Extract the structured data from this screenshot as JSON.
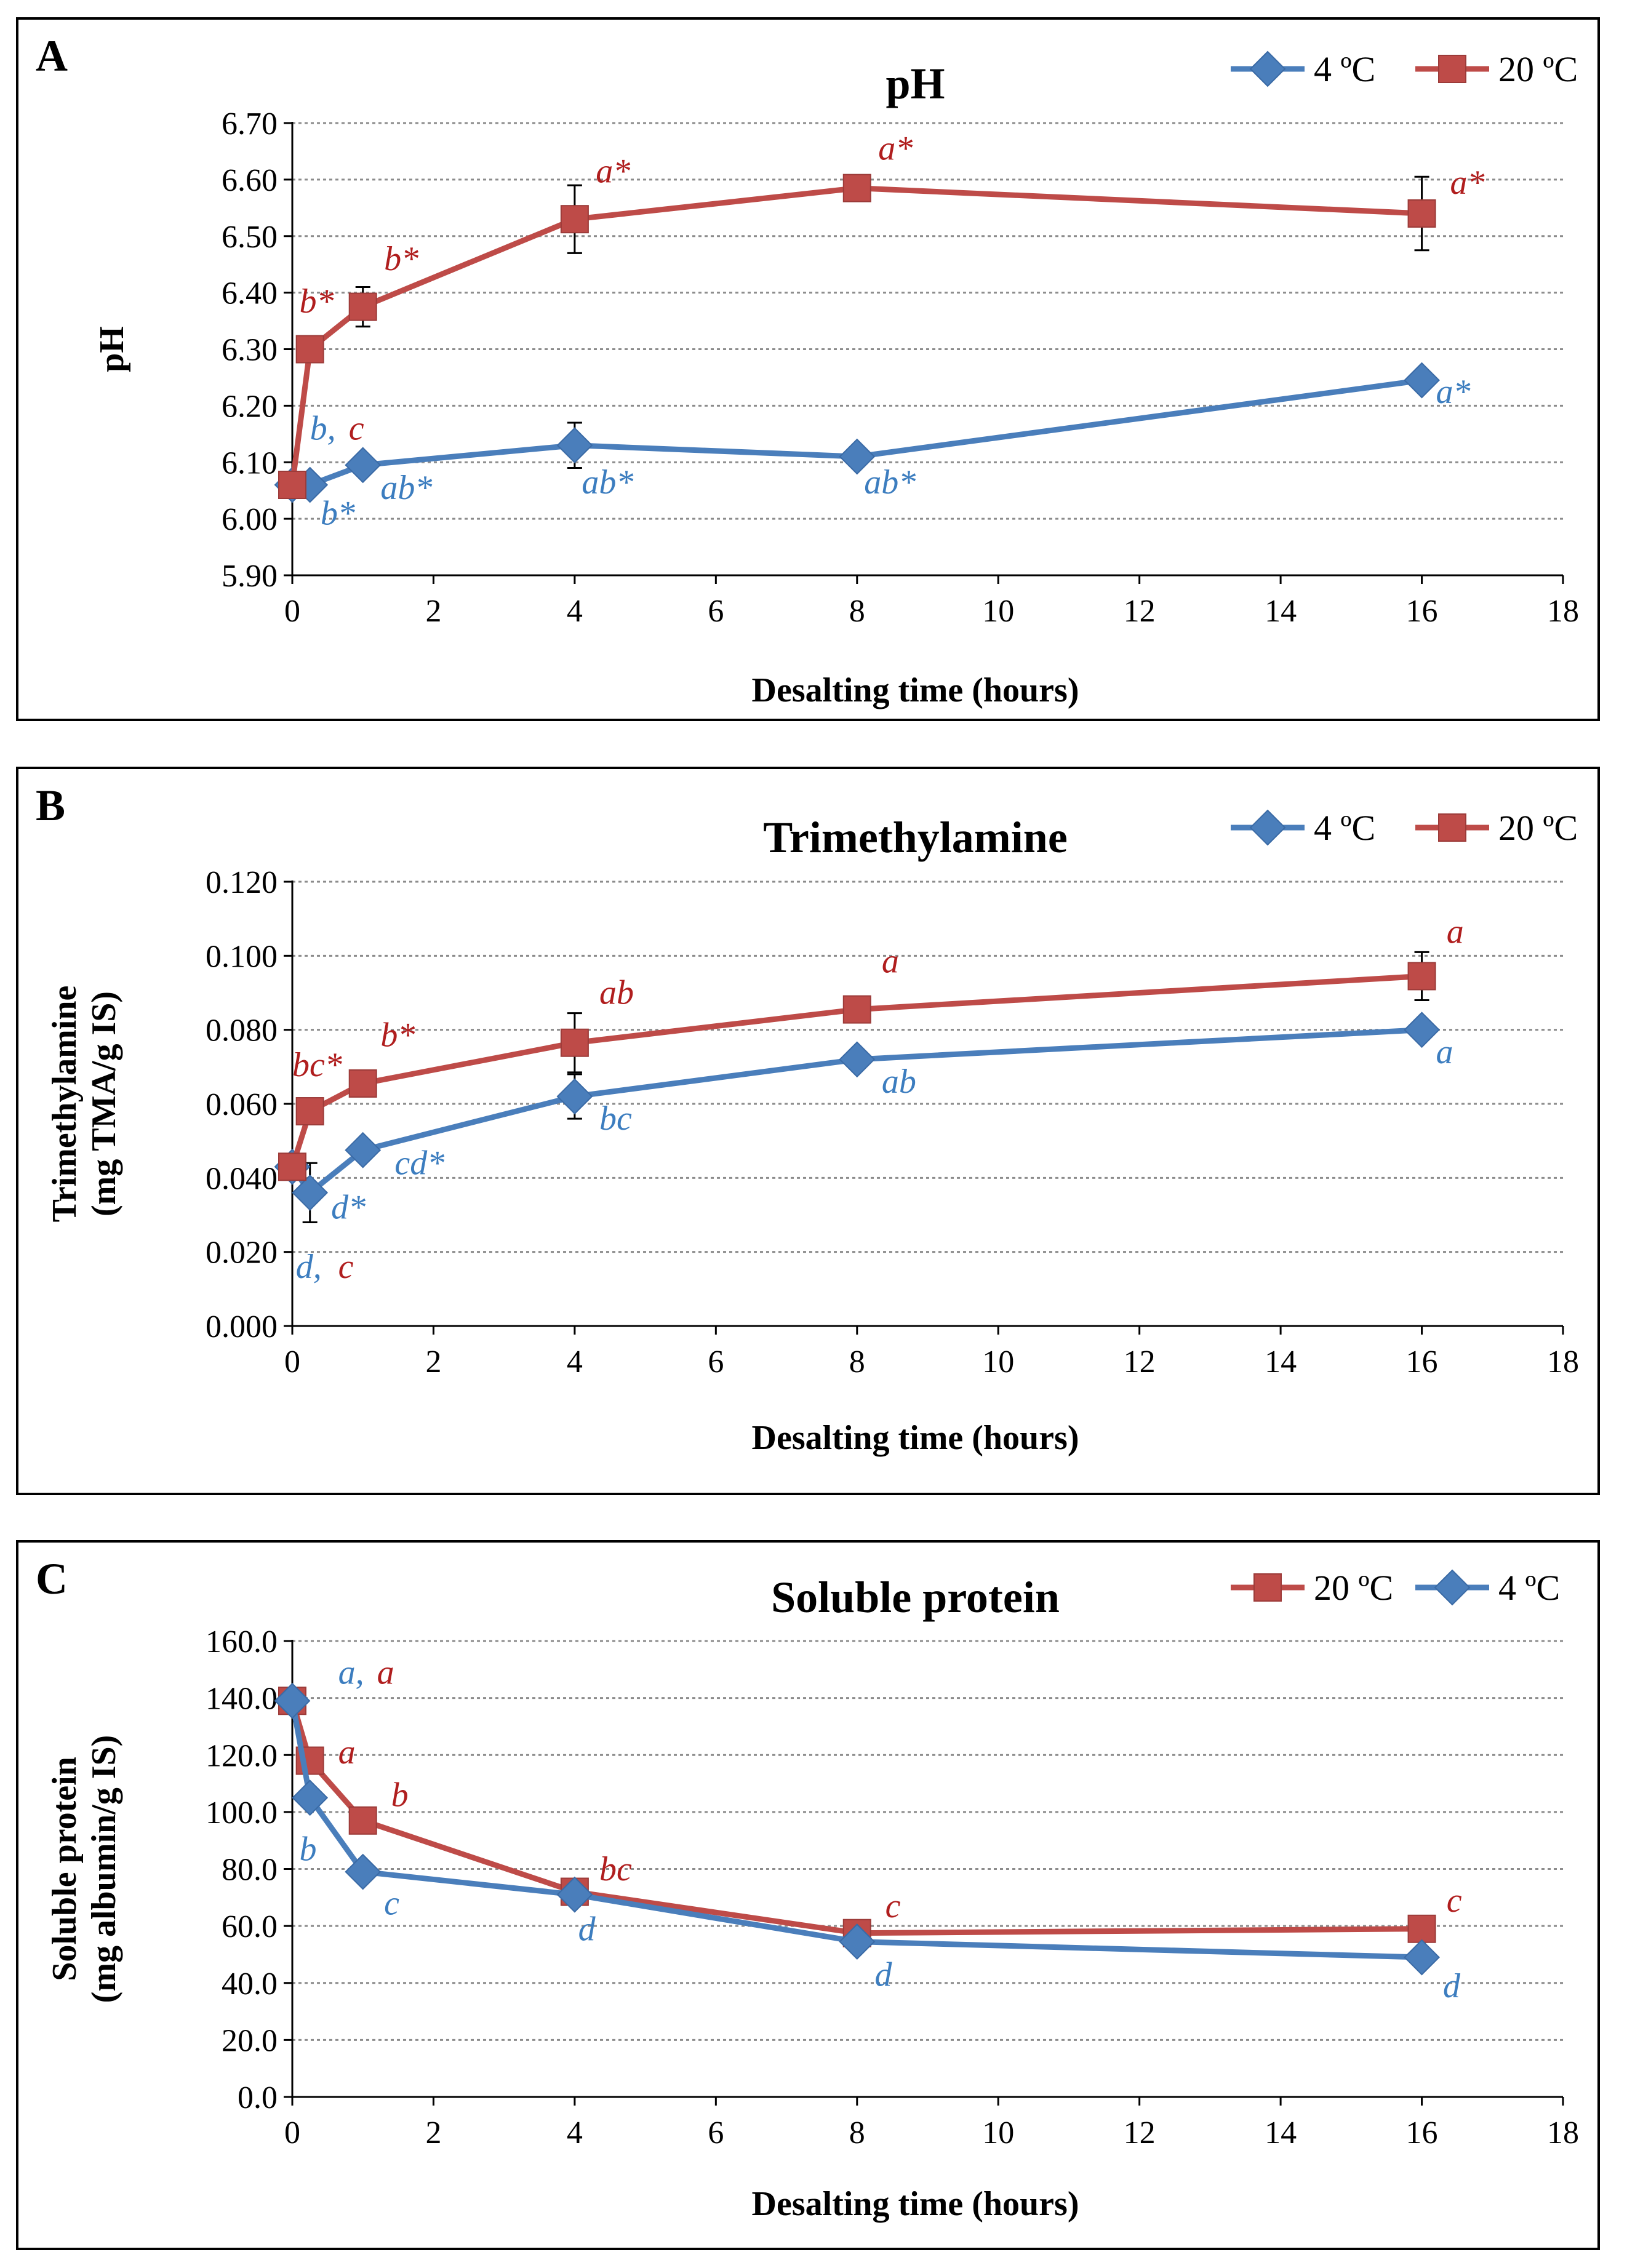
{
  "colors": {
    "blue": "#4a7ebb",
    "red": "#be4b48",
    "blue_text": "#3c7dbf",
    "red_text": "#b01e1e"
  },
  "chart_data": [
    {
      "panel": "A",
      "type": "line",
      "title": "pH",
      "xlabel": "Desalting time (hours)",
      "ylabel": [
        "pH"
      ],
      "xlim": [
        0,
        18
      ],
      "ylim": [
        5.9,
        6.7
      ],
      "xticks": [
        "0",
        "2",
        "4",
        "6",
        "8",
        "10",
        "12",
        "14",
        "16",
        "18"
      ],
      "yticks": [
        "5.90",
        "6.00",
        "6.10",
        "6.20",
        "6.30",
        "6.40",
        "6.50",
        "6.60",
        "6.70"
      ],
      "legend_position": "top-right",
      "series": [
        {
          "name": "4 ºC",
          "marker": "diamond",
          "color": "#4a7ebb",
          "x": [
            0,
            0.25,
            1,
            4,
            8,
            16
          ],
          "y": [
            6.06,
            6.06,
            6.095,
            6.13,
            6.11,
            6.245
          ],
          "err": [
            0,
            0,
            0,
            0.04,
            0,
            0
          ]
        },
        {
          "name": "20 ºC",
          "marker": "square",
          "color": "#be4b48",
          "x": [
            0,
            0.25,
            1,
            4,
            8,
            16
          ],
          "y": [
            6.06,
            6.3,
            6.375,
            6.53,
            6.585,
            6.54
          ],
          "err": [
            0,
            0,
            0.035,
            0.06,
            0,
            0.065
          ]
        }
      ],
      "annotations": [
        {
          "text": "b,",
          "color": "blue",
          "x": 0.25,
          "y": 6.14
        },
        {
          "text": "c",
          "color": "red",
          "x": 0.8,
          "y": 6.14
        },
        {
          "text": "b*",
          "color": "blue",
          "x": 0.4,
          "y": 5.99
        },
        {
          "text": "ab*",
          "color": "blue",
          "x": 1.25,
          "y": 6.035
        },
        {
          "text": "ab*",
          "color": "blue",
          "x": 4.1,
          "y": 6.045
        },
        {
          "text": "ab*",
          "color": "blue",
          "x": 8.1,
          "y": 6.045
        },
        {
          "text": "a*",
          "color": "blue",
          "x": 16.2,
          "y": 6.205
        },
        {
          "text": "b*",
          "color": "red",
          "x": 0.1,
          "y": 6.365
        },
        {
          "text": "b*",
          "color": "red",
          "x": 1.3,
          "y": 6.44
        },
        {
          "text": "a*",
          "color": "red",
          "x": 4.3,
          "y": 6.595
        },
        {
          "text": "a*",
          "color": "red",
          "x": 8.3,
          "y": 6.635
        },
        {
          "text": "a*",
          "color": "red",
          "x": 16.4,
          "y": 6.575
        }
      ]
    },
    {
      "panel": "B",
      "type": "line",
      "title": "Trimethylamine",
      "xlabel": "Desalting time (hours)",
      "ylabel": [
        "Trimethylamine",
        "(mg TMA/g IS)"
      ],
      "xlim": [
        0,
        18
      ],
      "ylim": [
        0,
        0.12
      ],
      "xticks": [
        "0",
        "2",
        "4",
        "6",
        "8",
        "10",
        "12",
        "14",
        "16",
        "18"
      ],
      "yticks": [
        "0.000",
        "0.020",
        "0.040",
        "0.060",
        "0.080",
        "0.100",
        "0.120"
      ],
      "legend_position": "top-right",
      "series": [
        {
          "name": "4 ºC",
          "marker": "diamond",
          "color": "#4a7ebb",
          "x": [
            0,
            0.25,
            1,
            4,
            8,
            16
          ],
          "y": [
            0.043,
            0.036,
            0.0475,
            0.062,
            0.072,
            0.08
          ],
          "err": [
            0,
            0.008,
            0,
            0.006,
            0,
            0
          ]
        },
        {
          "name": "20 ºC",
          "marker": "square",
          "color": "#be4b48",
          "x": [
            0,
            0.25,
            1,
            4,
            8,
            16
          ],
          "y": [
            0.043,
            0.058,
            0.0655,
            0.0765,
            0.0855,
            0.0945
          ],
          "err": [
            0,
            0,
            0,
            0.008,
            0,
            0.0065
          ]
        }
      ],
      "annotations": [
        {
          "text": "d,",
          "color": "blue",
          "x": 0.05,
          "y": 0.013
        },
        {
          "text": "c",
          "color": "red",
          "x": 0.65,
          "y": 0.013
        },
        {
          "text": "d*",
          "color": "blue",
          "x": 0.55,
          "y": 0.029
        },
        {
          "text": "cd*",
          "color": "blue",
          "x": 1.45,
          "y": 0.041
        },
        {
          "text": "bc",
          "color": "blue",
          "x": 4.35,
          "y": 0.053
        },
        {
          "text": "ab",
          "color": "blue",
          "x": 8.35,
          "y": 0.063
        },
        {
          "text": "a",
          "color": "blue",
          "x": 16.2,
          "y": 0.071
        },
        {
          "text": "bc*",
          "color": "red",
          "x": 0.0,
          "y": 0.0675
        },
        {
          "text": "b*",
          "color": "red",
          "x": 1.25,
          "y": 0.0755
        },
        {
          "text": "ab",
          "color": "red",
          "x": 4.35,
          "y": 0.087
        },
        {
          "text": "a",
          "color": "red",
          "x": 8.35,
          "y": 0.0955
        },
        {
          "text": "a",
          "color": "red",
          "x": 16.35,
          "y": 0.1035
        }
      ]
    },
    {
      "panel": "C",
      "type": "line",
      "title": "Soluble protein",
      "xlabel": "Desalting time (hours)",
      "ylabel": [
        "Soluble protein",
        "(mg albumin/g IS)"
      ],
      "xlim": [
        0,
        18
      ],
      "ylim": [
        0,
        160
      ],
      "xticks": [
        "0",
        "2",
        "4",
        "6",
        "8",
        "10",
        "12",
        "14",
        "16",
        "18"
      ],
      "yticks": [
        "0.0",
        "20.0",
        "40.0",
        "60.0",
        "80.0",
        "100.0",
        "120.0",
        "140.0",
        "160.0"
      ],
      "legend_position": "top-right",
      "series": [
        {
          "name": "20 ºC",
          "marker": "square",
          "color": "#be4b48",
          "x": [
            0,
            0.25,
            1,
            4,
            8,
            16
          ],
          "y": [
            139,
            118,
            97,
            72,
            57.5,
            59
          ],
          "err": [
            0,
            0,
            0,
            0,
            0,
            0
          ]
        },
        {
          "name": "4 ºC",
          "marker": "diamond",
          "color": "#4a7ebb",
          "x": [
            0,
            0.25,
            1,
            4,
            8,
            16
          ],
          "y": [
            139,
            105,
            79,
            71,
            54.5,
            49
          ],
          "err": [
            0,
            0,
            0,
            0,
            0,
            0
          ]
        }
      ],
      "annotations": [
        {
          "text": "a,",
          "color": "blue",
          "x": 0.65,
          "y": 145
        },
        {
          "text": "a",
          "color": "red",
          "x": 1.2,
          "y": 145
        },
        {
          "text": "a",
          "color": "red",
          "x": 0.65,
          "y": 117
        },
        {
          "text": "b",
          "color": "red",
          "x": 1.4,
          "y": 102
        },
        {
          "text": "b",
          "color": "blue",
          "x": 0.1,
          "y": 83
        },
        {
          "text": "c",
          "color": "blue",
          "x": 1.3,
          "y": 64
        },
        {
          "text": "bc",
          "color": "red",
          "x": 4.35,
          "y": 76
        },
        {
          "text": "d",
          "color": "blue",
          "x": 4.05,
          "y": 55
        },
        {
          "text": "c",
          "color": "red",
          "x": 8.4,
          "y": 63
        },
        {
          "text": "d",
          "color": "blue",
          "x": 8.25,
          "y": 39
        },
        {
          "text": "c",
          "color": "red",
          "x": 16.35,
          "y": 65
        },
        {
          "text": "d",
          "color": "blue",
          "x": 16.3,
          "y": 35
        }
      ]
    }
  ]
}
